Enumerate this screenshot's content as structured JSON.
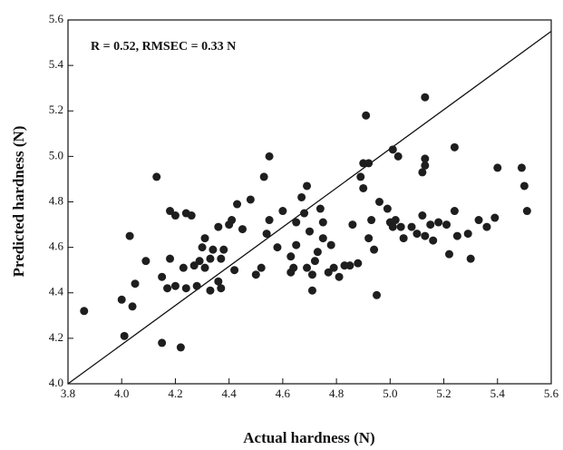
{
  "chart_data": {
    "type": "scatter",
    "annotation": "R = 0.52, RMSEC = 0.33 N",
    "x_label": "Actual hardness (N)",
    "y_label": "Predicted hardness (N)",
    "color": "#1e1e1e",
    "xlim": [
      3.8,
      5.6
    ],
    "ylim": [
      4.0,
      5.6
    ],
    "xticks": [
      3.8,
      {
        "value": 4,
        "label": "4.0"
      },
      4.2,
      4.4,
      4.6,
      4.8,
      {
        "value": 5,
        "label": "5.0"
      },
      5.2,
      5.4,
      5.6
    ],
    "yticks": [
      {
        "value": 4,
        "label": "4.0"
      },
      4.2,
      4.4,
      4.6,
      4.8,
      {
        "value": 5,
        "label": "5.0"
      },
      5.2,
      5.4,
      5.6
    ],
    "fit_line": {
      "x": [
        3.8,
        5.6
      ],
      "y": [
        4.0,
        5.55
      ]
    },
    "x": [
      3.86,
      4.01,
      4.0,
      4.03,
      4.04,
      4.05,
      4.09,
      4.13,
      4.15,
      4.15,
      4.17,
      4.18,
      4.2,
      4.18,
      4.2,
      4.22,
      4.23,
      4.24,
      4.24,
      4.26,
      4.27,
      4.28,
      4.29,
      4.3,
      4.31,
      4.31,
      4.33,
      4.33,
      4.34,
      4.36,
      4.37,
      4.37,
      4.36,
      4.4,
      4.38,
      4.41,
      4.42,
      4.43,
      4.45,
      4.48,
      4.5,
      4.52,
      4.54,
      4.53,
      4.55,
      4.55,
      4.58,
      4.6,
      4.63,
      4.64,
      4.65,
      4.63,
      4.65,
      4.67,
      4.68,
      4.69,
      4.69,
      4.7,
      4.71,
      4.71,
      4.72,
      4.73,
      4.74,
      4.75,
      4.75,
      4.77,
      4.78,
      4.79,
      4.81,
      4.83,
      4.85,
      4.86,
      4.88,
      4.89,
      4.9,
      4.91,
      4.9,
      4.92,
      4.92,
      4.93,
      4.94,
      4.95,
      4.96,
      4.99,
      5.01,
      5.0,
      5.01,
      5.02,
      5.03,
      5.04,
      5.05,
      5.08,
      5.1,
      5.12,
      5.12,
      5.13,
      5.13,
      5.13,
      5.13,
      5.15,
      5.16,
      5.18,
      5.21,
      5.22,
      5.24,
      5.24,
      5.25,
      5.29,
      5.3,
      5.33,
      5.36,
      5.39,
      5.4,
      5.49,
      5.5,
      5.51
    ],
    "values": [
      4.32,
      4.21,
      4.37,
      4.65,
      4.34,
      4.44,
      4.54,
      4.91,
      4.18,
      4.47,
      4.42,
      4.76,
      4.74,
      4.55,
      4.43,
      4.16,
      4.51,
      4.42,
      4.75,
      4.74,
      4.52,
      4.43,
      4.54,
      4.6,
      4.64,
      4.51,
      4.55,
      4.41,
      4.59,
      4.45,
      4.55,
      4.42,
      4.69,
      4.7,
      4.59,
      4.72,
      4.5,
      4.79,
      4.68,
      4.81,
      4.48,
      4.51,
      4.66,
      4.91,
      5.0,
      4.72,
      4.6,
      4.76,
      4.56,
      4.51,
      4.61,
      4.49,
      4.71,
      4.82,
      4.75,
      4.51,
      4.87,
      4.67,
      4.48,
      4.41,
      4.54,
      4.58,
      4.77,
      4.71,
      4.64,
      4.49,
      4.61,
      4.51,
      4.47,
      4.52,
      4.52,
      4.7,
      4.53,
      4.91,
      4.97,
      5.18,
      4.86,
      4.64,
      4.97,
      4.72,
      4.59,
      4.39,
      4.8,
      4.77,
      5.03,
      4.71,
      4.69,
      4.72,
      5.0,
      4.69,
      4.64,
      4.69,
      4.66,
      4.74,
      4.93,
      4.96,
      4.65,
      4.99,
      5.26,
      4.7,
      4.63,
      4.71,
      4.7,
      4.57,
      5.04,
      4.76,
      4.65,
      4.66,
      4.55,
      4.72,
      4.69,
      4.73,
      4.95,
      4.95,
      4.87,
      4.76
    ]
  }
}
